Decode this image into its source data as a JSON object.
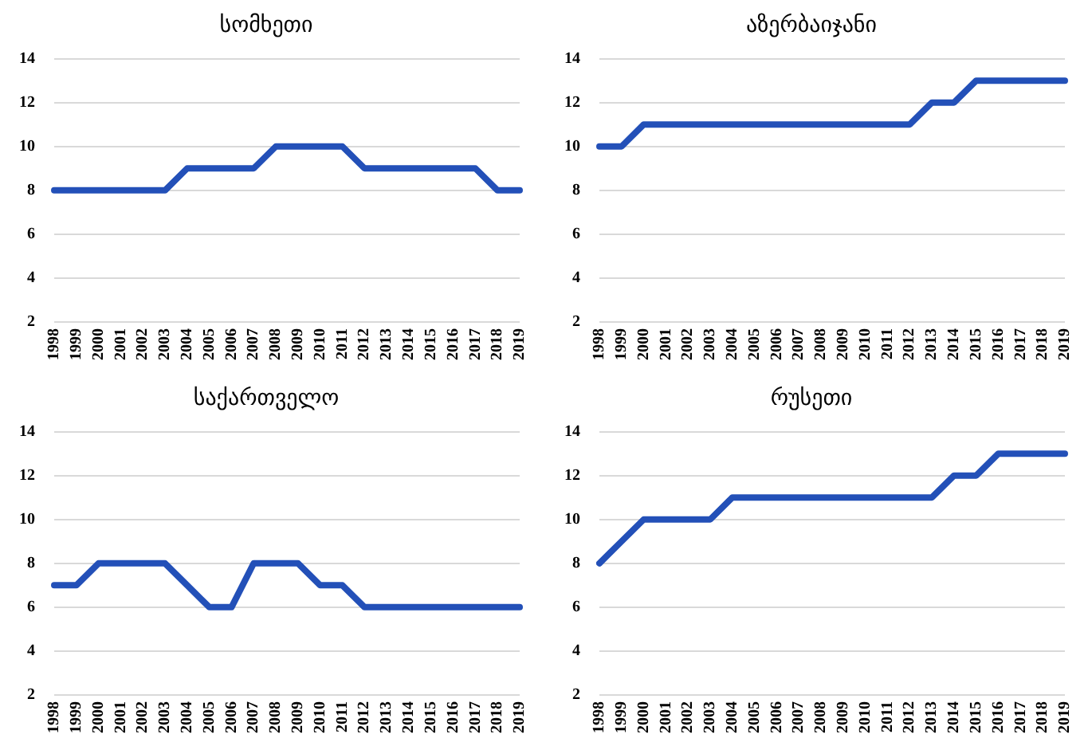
{
  "chart_data": [
    {
      "type": "line",
      "title": "სომხეთი",
      "categories": [
        "1998",
        "1999",
        "2000",
        "2001",
        "2002",
        "2003",
        "2004",
        "2005",
        "2006",
        "2007",
        "2008",
        "2009",
        "2010",
        "2011",
        "2012",
        "2013",
        "2014",
        "2015",
        "2016",
        "2017",
        "2018",
        "2019"
      ],
      "series": [
        {
          "color": "#2350b8",
          "values": [
            8,
            8,
            8,
            8,
            8,
            8,
            9,
            9,
            9,
            9,
            10,
            10,
            10,
            10,
            9,
            9,
            9,
            9,
            9,
            9,
            8,
            8
          ]
        }
      ],
      "ylim": [
        2,
        14
      ],
      "yticks": [
        2,
        4,
        6,
        8,
        10,
        12,
        14
      ],
      "grid": "y",
      "legend": false,
      "marker": "none"
    },
    {
      "type": "line",
      "title": "აზერბაიჯანი",
      "categories": [
        "1998",
        "1999",
        "2000",
        "2001",
        "2002",
        "2003",
        "2004",
        "2005",
        "2006",
        "2007",
        "2008",
        "2009",
        "2010",
        "2011",
        "2012",
        "2013",
        "2014",
        "2015",
        "2016",
        "2017",
        "2018",
        "2019"
      ],
      "series": [
        {
          "color": "#2350b8",
          "values": [
            10,
            10,
            11,
            11,
            11,
            11,
            11,
            11,
            11,
            11,
            11,
            11,
            11,
            11,
            11,
            12,
            12,
            13,
            13,
            13,
            13,
            13
          ]
        }
      ],
      "ylim": [
        2,
        14
      ],
      "yticks": [
        2,
        4,
        6,
        8,
        10,
        12,
        14
      ],
      "grid": "y",
      "legend": false,
      "marker": "none"
    },
    {
      "type": "line",
      "title": "საქართველო",
      "categories": [
        "1998",
        "1999",
        "2000",
        "2001",
        "2002",
        "2003",
        "2004",
        "2005",
        "2006",
        "2007",
        "2008",
        "2009",
        "2010",
        "2011",
        "2012",
        "2013",
        "2014",
        "2015",
        "2016",
        "2017",
        "2018",
        "2019"
      ],
      "series": [
        {
          "color": "#2350b8",
          "values": [
            7,
            7,
            8,
            8,
            8,
            8,
            7,
            6,
            6,
            8,
            8,
            8,
            7,
            7,
            6,
            6,
            6,
            6,
            6,
            6,
            6,
            6
          ]
        }
      ],
      "ylim": [
        2,
        14
      ],
      "yticks": [
        2,
        4,
        6,
        8,
        10,
        12,
        14
      ],
      "grid": "y",
      "legend": false,
      "marker": "none"
    },
    {
      "type": "line",
      "title": "რუსეთი",
      "categories": [
        "1998",
        "1999",
        "2000",
        "2001",
        "2002",
        "2003",
        "2004",
        "2005",
        "2006",
        "2007",
        "2008",
        "2009",
        "2010",
        "2011",
        "2012",
        "2013",
        "2014",
        "2015",
        "2016",
        "2017",
        "2018",
        "2019"
      ],
      "series": [
        {
          "color": "#2350b8",
          "values": [
            8,
            9,
            10,
            10,
            10,
            10,
            11,
            11,
            11,
            11,
            11,
            11,
            11,
            11,
            11,
            11,
            12,
            12,
            13,
            13,
            13,
            13
          ]
        }
      ],
      "ylim": [
        2,
        14
      ],
      "yticks": [
        2,
        4,
        6,
        8,
        10,
        12,
        14
      ],
      "grid": "y",
      "legend": false,
      "marker": "none"
    }
  ]
}
